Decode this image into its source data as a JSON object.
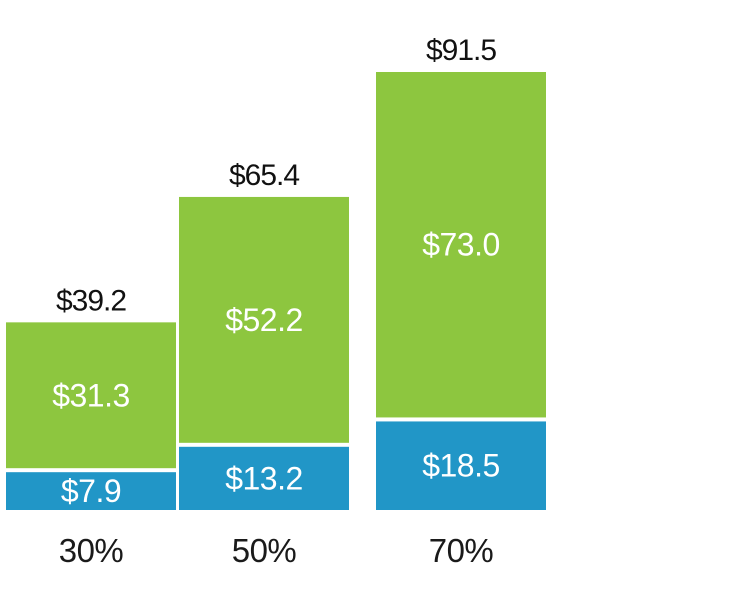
{
  "chart_data": {
    "type": "bar",
    "stacked": true,
    "categories": [
      "30%",
      "50%",
      "70%"
    ],
    "series": [
      {
        "values": [
          7.9,
          13.2,
          18.5
        ],
        "labels": [
          "$7.9",
          "$13.2",
          "$18.5"
        ],
        "color": "#2196c7"
      },
      {
        "values": [
          31.3,
          52.2,
          73.0
        ],
        "labels": [
          "$31.3",
          "$52.2",
          "$73.0"
        ],
        "color": "#8dc63f"
      }
    ],
    "totals": [
      39.2,
      65.4,
      91.5
    ],
    "total_labels": [
      "$39.2",
      "$65.4",
      "$91.5"
    ],
    "ylim": [
      0,
      91.5
    ],
    "grid": false,
    "legend": "none",
    "colors": {
      "background": "#ffffff",
      "total_text": "#111111",
      "segment_text": "#ffffff",
      "category_text": "#1a1a1a"
    }
  }
}
